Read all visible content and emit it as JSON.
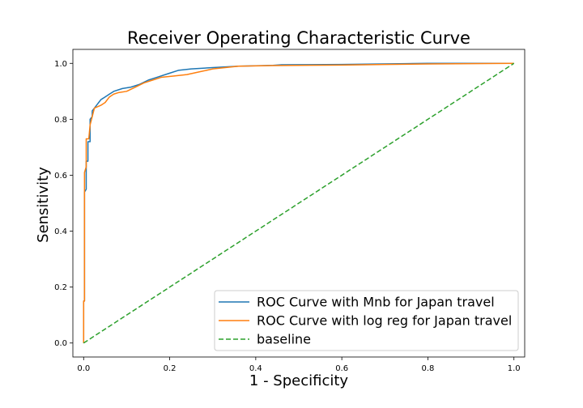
{
  "chart_data": {
    "type": "line",
    "title": "Receiver Operating Characteristic Curve",
    "xlabel": "1 - Specificity",
    "ylabel": "Sensitivity",
    "xlim": [
      -0.025,
      1.025
    ],
    "ylim": [
      -0.05,
      1.05
    ],
    "xticks": [
      "0.0",
      "0.2",
      "0.4",
      "0.6",
      "0.8",
      "1.0"
    ],
    "yticks": [
      "0.0",
      "0.2",
      "0.4",
      "0.6",
      "0.8",
      "1.0"
    ],
    "grid": false,
    "legend_position": "lower-right",
    "series": [
      {
        "name": "ROC Curve with Mnb for Japan travel",
        "color": "#1f77b4",
        "style": "solid",
        "points": [
          [
            0.0,
            0.0
          ],
          [
            0.0,
            0.15
          ],
          [
            0.002,
            0.15
          ],
          [
            0.002,
            0.54
          ],
          [
            0.006,
            0.55
          ],
          [
            0.006,
            0.65
          ],
          [
            0.01,
            0.65
          ],
          [
            0.01,
            0.72
          ],
          [
            0.015,
            0.72
          ],
          [
            0.015,
            0.8
          ],
          [
            0.02,
            0.81
          ],
          [
            0.02,
            0.83
          ],
          [
            0.025,
            0.84
          ],
          [
            0.03,
            0.85
          ],
          [
            0.035,
            0.86
          ],
          [
            0.04,
            0.87
          ],
          [
            0.05,
            0.88
          ],
          [
            0.06,
            0.89
          ],
          [
            0.07,
            0.9
          ],
          [
            0.09,
            0.91
          ],
          [
            0.11,
            0.915
          ],
          [
            0.13,
            0.925
          ],
          [
            0.15,
            0.94
          ],
          [
            0.17,
            0.95
          ],
          [
            0.2,
            0.965
          ],
          [
            0.22,
            0.975
          ],
          [
            0.25,
            0.98
          ],
          [
            0.3,
            0.985
          ],
          [
            0.36,
            0.99
          ],
          [
            0.44,
            0.993
          ],
          [
            0.46,
            0.995
          ],
          [
            0.6,
            0.996
          ],
          [
            0.75,
            0.999
          ],
          [
            0.8,
            1.0
          ],
          [
            1.0,
            1.0
          ]
        ]
      },
      {
        "name": "ROC Curve with log reg for Japan travel",
        "color": "#ff7f0e",
        "style": "solid",
        "points": [
          [
            0.0,
            0.0
          ],
          [
            0.0,
            0.15
          ],
          [
            0.002,
            0.15
          ],
          [
            0.002,
            0.61
          ],
          [
            0.006,
            0.63
          ],
          [
            0.006,
            0.73
          ],
          [
            0.012,
            0.73
          ],
          [
            0.015,
            0.78
          ],
          [
            0.02,
            0.81
          ],
          [
            0.025,
            0.84
          ],
          [
            0.04,
            0.85
          ],
          [
            0.05,
            0.86
          ],
          [
            0.06,
            0.88
          ],
          [
            0.07,
            0.89
          ],
          [
            0.08,
            0.895
          ],
          [
            0.1,
            0.9
          ],
          [
            0.12,
            0.915
          ],
          [
            0.14,
            0.93
          ],
          [
            0.16,
            0.94
          ],
          [
            0.18,
            0.95
          ],
          [
            0.21,
            0.955
          ],
          [
            0.24,
            0.96
          ],
          [
            0.27,
            0.97
          ],
          [
            0.3,
            0.98
          ],
          [
            0.36,
            0.99
          ],
          [
            0.44,
            0.992
          ],
          [
            0.6,
            0.994
          ],
          [
            0.7,
            0.996
          ],
          [
            0.8,
            0.998
          ],
          [
            1.0,
            1.0
          ]
        ]
      },
      {
        "name": "baseline",
        "color": "#2ca02c",
        "style": "dashed",
        "points": [
          [
            0.0,
            0.0
          ],
          [
            1.0,
            1.0
          ]
        ]
      }
    ]
  }
}
